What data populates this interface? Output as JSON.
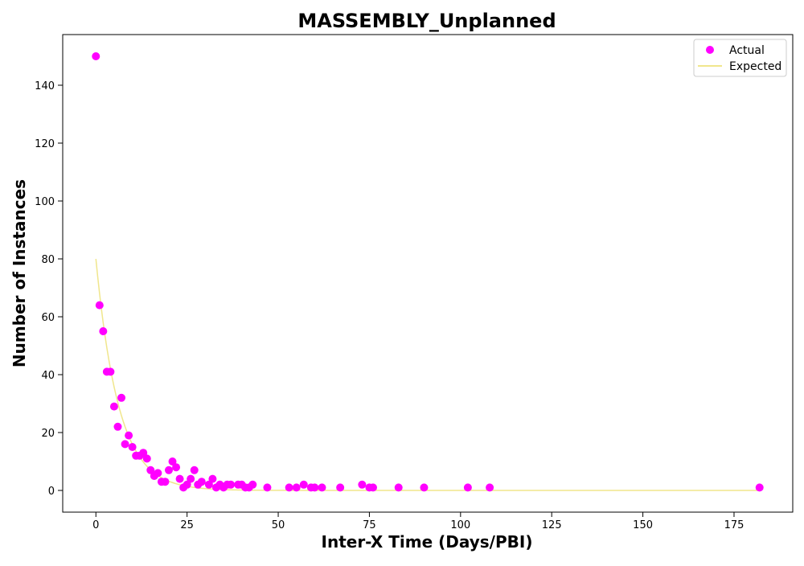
{
  "chart_data": {
    "type": "scatter",
    "title": "MASSEMBLY_Unplanned",
    "xlabel": "Inter-X Time (Days/PBI)",
    "ylabel": "Number of Instances",
    "xlim": [
      -9.1,
      191.1
    ],
    "ylim": [
      -7.5,
      157.5
    ],
    "xticks": [
      0,
      25,
      50,
      75,
      100,
      125,
      150,
      175
    ],
    "yticks": [
      0,
      20,
      40,
      60,
      80,
      100,
      120,
      140
    ],
    "legend_position": "top-right",
    "series": [
      {
        "name": "Actual",
        "kind": "scatter",
        "color": "#ff00ff",
        "points": [
          [
            0,
            150
          ],
          [
            1,
            64
          ],
          [
            2,
            55
          ],
          [
            3,
            41
          ],
          [
            4,
            41
          ],
          [
            5,
            29
          ],
          [
            6,
            22
          ],
          [
            7,
            32
          ],
          [
            8,
            16
          ],
          [
            9,
            19
          ],
          [
            10,
            15
          ],
          [
            11,
            12
          ],
          [
            12,
            12
          ],
          [
            13,
            13
          ],
          [
            14,
            11
          ],
          [
            15,
            7
          ],
          [
            16,
            5
          ],
          [
            17,
            6
          ],
          [
            18,
            3
          ],
          [
            19,
            3
          ],
          [
            20,
            7
          ],
          [
            21,
            10
          ],
          [
            22,
            8
          ],
          [
            23,
            4
          ],
          [
            24,
            1
          ],
          [
            25,
            2
          ],
          [
            26,
            4
          ],
          [
            27,
            7
          ],
          [
            28,
            2
          ],
          [
            29,
            3
          ],
          [
            31,
            2
          ],
          [
            32,
            4
          ],
          [
            33,
            1
          ],
          [
            34,
            2
          ],
          [
            35,
            1
          ],
          [
            36,
            2
          ],
          [
            37,
            2
          ],
          [
            39,
            2
          ],
          [
            40,
            2
          ],
          [
            41,
            1
          ],
          [
            42,
            1
          ],
          [
            43,
            2
          ],
          [
            47,
            1
          ],
          [
            53,
            1
          ],
          [
            55,
            1
          ],
          [
            57,
            2
          ],
          [
            59,
            1
          ],
          [
            60,
            1
          ],
          [
            62,
            1
          ],
          [
            67,
            1
          ],
          [
            73,
            2
          ],
          [
            75,
            1
          ],
          [
            76,
            1
          ],
          [
            83,
            1
          ],
          [
            90,
            1
          ],
          [
            102,
            1
          ],
          [
            108,
            1
          ],
          [
            182,
            1
          ]
        ]
      },
      {
        "name": "Expected",
        "kind": "line",
        "color": "#f0e68c",
        "function": "80 * exp(-x / 6.2)",
        "x_range": [
          0,
          182
        ]
      }
    ]
  }
}
